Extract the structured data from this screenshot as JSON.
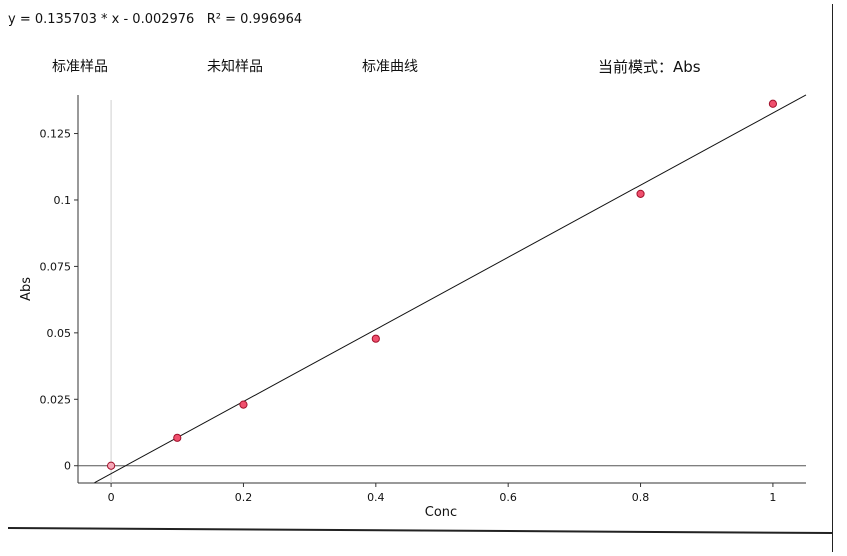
{
  "header": {
    "equation": "y = 0.135703 * x - 0.002976   R² = 0.996964",
    "tabs": [
      "标准样品",
      "未知样品",
      "标准曲线"
    ],
    "mode_label": "当前模式：Abs"
  },
  "chart_data": {
    "type": "scatter",
    "title": "",
    "xlabel": "Conc",
    "ylabel": "Abs",
    "xlim": [
      -0.05,
      1.05
    ],
    "ylim": [
      -0.0065,
      0.1395
    ],
    "x_ticks": [
      {
        "value": 0,
        "label": "0"
      },
      {
        "value": 0.2,
        "label": "0.2"
      },
      {
        "value": 0.4,
        "label": "0.4"
      },
      {
        "value": 0.6,
        "label": "0.6"
      },
      {
        "value": 0.8,
        "label": "0.8"
      },
      {
        "value": 1,
        "label": "1"
      }
    ],
    "y_ticks": [
      {
        "value": 0,
        "label": "0"
      },
      {
        "value": 0.025,
        "label": "0.025"
      },
      {
        "value": 0.05,
        "label": "0.05"
      },
      {
        "value": 0.075,
        "label": "0.075"
      },
      {
        "value": 0.1,
        "label": "0.1"
      },
      {
        "value": 0.125,
        "label": "0.125"
      }
    ],
    "grid": false,
    "legend": "none",
    "points": {
      "x": [
        0,
        0.1,
        0.2,
        0.4,
        0.8,
        1.0
      ],
      "y": [
        0.0,
        0.0105,
        0.023,
        0.0478,
        0.1023,
        0.1362
      ]
    },
    "fit_line": {
      "slope": 0.135703,
      "intercept": -0.002976,
      "x_range": [
        -0.025,
        1.05
      ]
    },
    "colors": {
      "point_fill": "#f0506e",
      "point_stroke": "#a0102a",
      "first_point_fill": "#f7a8b8",
      "line": "#111111"
    }
  }
}
